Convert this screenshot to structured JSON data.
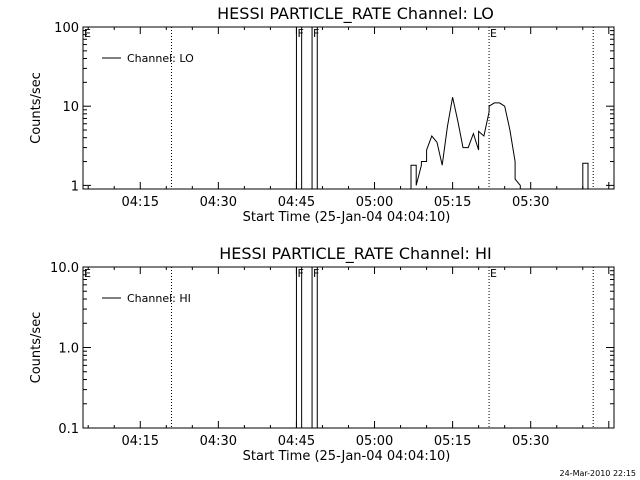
{
  "chart_data": [
    {
      "type": "line",
      "title": "HESSI PARTICLE_RATE Channel: LO",
      "xlabel": "Start Time (25-Jan-04 04:04:10)",
      "ylabel": "Counts/sec",
      "yscale": "log",
      "xlim": [
        "04:04",
        "05:46"
      ],
      "ylim": [
        0.9,
        100
      ],
      "grid": false,
      "legend_position": "top-left",
      "x_ticks": [
        "04:15",
        "04:30",
        "04:45",
        "05:00",
        "05:15",
        "05:30"
      ],
      "y_ticks": [
        "1",
        "10",
        "100"
      ],
      "series": [
        {
          "name": "Channel: LO",
          "color": "#000000",
          "x": [
            "05:07",
            "05:07",
            "05:08",
            "05:08",
            "05:09",
            "05:09",
            "05:10",
            "05:10",
            "05:11",
            "05:12",
            "05:13",
            "05:14",
            "05:15",
            "05:16",
            "05:17",
            "05:18",
            "05:19",
            "05:20",
            "05:20",
            "05:21",
            "05:22",
            "05:22",
            "05:23",
            "05:24",
            "05:25",
            "05:26",
            "05:27",
            "05:27",
            "05:28",
            "05:28"
          ],
          "values": [
            0.9,
            1.8,
            1.8,
            1,
            1.8,
            2,
            2,
            2.8,
            4.2,
            3.5,
            1.8,
            5.5,
            13,
            6.5,
            3,
            3,
            4.5,
            2.8,
            4.8,
            4.2,
            8.5,
            10,
            11,
            11,
            10,
            5,
            2,
            1.2,
            1,
            0.9
          ]
        },
        {
          "name": "",
          "color": "#000000",
          "x": [
            "05:40",
            "05:40",
            "05:41",
            "05:41"
          ],
          "values": [
            0.9,
            1.9,
            1.9,
            0.9
          ]
        }
      ],
      "markers": [
        {
          "label": "E",
          "time": "04:04",
          "style": "dotted"
        },
        {
          "label": "",
          "time": "04:21",
          "style": "dotted"
        },
        {
          "label": "F",
          "time": "04:45",
          "style": "solid"
        },
        {
          "label": "",
          "time": "04:46",
          "style": "solid"
        },
        {
          "label": "F",
          "time": "04:48",
          "style": "solid"
        },
        {
          "label": "",
          "time": "04:49",
          "style": "solid"
        },
        {
          "label": "E",
          "time": "05:22",
          "style": "dotted"
        },
        {
          "label": "",
          "time": "05:42",
          "style": "dotted"
        }
      ]
    },
    {
      "type": "line",
      "title": "HESSI PARTICLE_RATE Channel: HI",
      "xlabel": "Start Time (25-Jan-04 04:04:10)",
      "ylabel": "Counts/sec",
      "yscale": "log",
      "xlim": [
        "04:04",
        "05:46"
      ],
      "ylim": [
        0.1,
        10
      ],
      "grid": false,
      "legend_position": "top-left",
      "x_ticks": [
        "04:15",
        "04:30",
        "04:45",
        "05:00",
        "05:15",
        "05:30"
      ],
      "y_ticks": [
        "0.1",
        "1.0",
        "10.0"
      ],
      "series": [
        {
          "name": "Channel: HI",
          "color": "#000000",
          "x": [],
          "values": []
        }
      ],
      "markers": [
        {
          "label": "E",
          "time": "04:04",
          "style": "dotted"
        },
        {
          "label": "",
          "time": "04:21",
          "style": "dotted"
        },
        {
          "label": "F",
          "time": "04:45",
          "style": "solid"
        },
        {
          "label": "",
          "time": "04:46",
          "style": "solid"
        },
        {
          "label": "F",
          "time": "04:48",
          "style": "solid"
        },
        {
          "label": "",
          "time": "04:49",
          "style": "solid"
        },
        {
          "label": "E",
          "time": "05:22",
          "style": "dotted"
        },
        {
          "label": "",
          "time": "05:42",
          "style": "dotted"
        }
      ]
    }
  ],
  "footer": {
    "timestamp": "24-Mar-2010 22:15"
  }
}
